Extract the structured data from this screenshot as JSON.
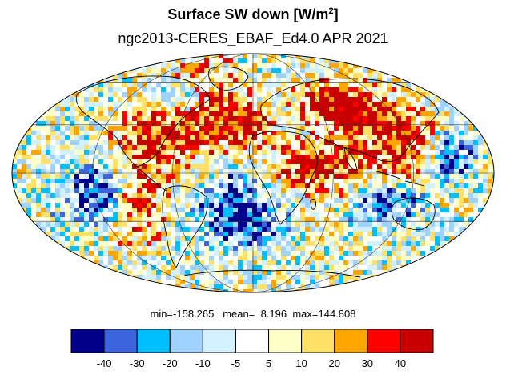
{
  "title_main": "Surface SW down [W/m",
  "title_sup": "2",
  "title_close": "]",
  "subtitle": "ngc2013-CERES_EBAF_Ed4.0  APR 2021",
  "stats": {
    "min_label": "min=",
    "min": "-158.265",
    "mean_label": "mean=",
    "mean": "8.196",
    "max_label": "max=",
    "max": "144.808"
  },
  "map": {
    "projection": "mollweide",
    "ocean_color": "#ffffff",
    "coastline_color": "#000000",
    "graticule_color": "#222222"
  },
  "colorbar": {
    "colors": [
      "#00008b",
      "#3c64dc",
      "#00bfff",
      "#a0d2ff",
      "#d2f0ff",
      "#ffffff",
      "#ffffc8",
      "#ffe066",
      "#ffa500",
      "#ff0000",
      "#c80000"
    ],
    "tick_labels": [
      "-40",
      "-30",
      "-20",
      "-10",
      "-5",
      "5",
      "10",
      "20",
      "30",
      "40"
    ]
  }
}
